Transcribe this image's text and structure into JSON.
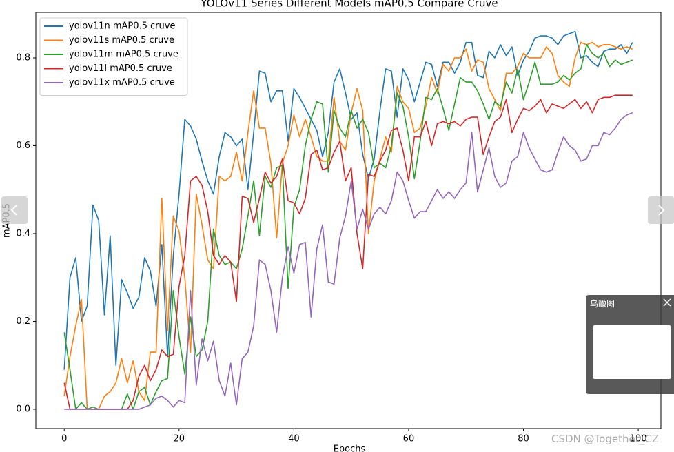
{
  "chart_data": {
    "type": "line",
    "title": "YOLOv11 Series Different Models mAP0.5 Compare Cruve",
    "x_label": "Epochs",
    "y_label": "mAP0.5",
    "x": [
      0,
      1,
      2,
      3,
      4,
      5,
      6,
      7,
      8,
      9,
      10,
      11,
      12,
      13,
      14,
      15,
      16,
      17,
      18,
      19,
      20,
      21,
      22,
      23,
      24,
      25,
      26,
      27,
      28,
      29,
      30,
      31,
      32,
      33,
      34,
      35,
      36,
      37,
      38,
      39,
      40,
      41,
      42,
      43,
      44,
      45,
      46,
      47,
      48,
      49,
      50,
      51,
      52,
      53,
      54,
      55,
      56,
      57,
      58,
      59,
      60,
      61,
      62,
      63,
      64,
      65,
      66,
      67,
      68,
      69,
      70,
      71,
      72,
      73,
      74,
      75,
      76,
      77,
      78,
      79,
      80,
      81,
      82,
      83,
      84,
      85,
      86,
      87,
      88,
      89,
      90,
      91,
      92,
      93,
      94,
      95,
      96,
      97,
      98,
      99
    ],
    "xlim": [
      -4.95,
      103.95
    ],
    "xticks": [
      0,
      20,
      40,
      60,
      80,
      100
    ],
    "ylim": [
      -0.044,
      0.9035
    ],
    "yticks": [
      {
        "value": 0,
        "label": "0.0"
      },
      0.2,
      0.4,
      0.6,
      0.8
    ],
    "legend": "upper left",
    "series": [
      {
        "name": "yolov11n mAP0.5 cruve",
        "color": "#1f77b4",
        "values": [
          0.09,
          0.3,
          0.345,
          0.2,
          0.235,
          0.465,
          0.43,
          0.215,
          0.395,
          0.1,
          0.295,
          0.265,
          0.23,
          0.255,
          0.345,
          0.315,
          0.235,
          0.375,
          0.12,
          0.35,
          0.49,
          0.66,
          0.645,
          0.615,
          0.565,
          0.52,
          0.49,
          0.575,
          0.63,
          0.62,
          0.6,
          0.615,
          0.5,
          0.63,
          0.77,
          0.765,
          0.7,
          0.725,
          0.725,
          0.61,
          0.73,
          0.71,
          0.685,
          0.66,
          0.635,
          0.575,
          0.63,
          0.745,
          0.775,
          0.72,
          0.66,
          0.675,
          0.58,
          0.525,
          0.57,
          0.68,
          0.775,
          0.77,
          0.665,
          0.775,
          0.75,
          0.7,
          0.745,
          0.79,
          0.785,
          0.735,
          0.79,
          0.79,
          0.765,
          0.79,
          0.835,
          0.835,
          0.76,
          0.755,
          0.815,
          0.8,
          0.83,
          0.805,
          0.825,
          0.76,
          0.795,
          0.815,
          0.845,
          0.85,
          0.85,
          0.845,
          0.83,
          0.85,
          0.855,
          0.86,
          0.8,
          0.805,
          0.79,
          0.78,
          0.815,
          0.82,
          0.82,
          0.83,
          0.81,
          0.835
        ]
      },
      {
        "name": "yolov11s mAP0.5 cruve",
        "color": "#ff7f0e",
        "values": [
          0.03,
          0.12,
          0.19,
          0.25,
          0.0,
          0.0,
          0.0,
          0.03,
          0.04,
          0.06,
          0.115,
          0.06,
          0.11,
          0.04,
          0.02,
          0.13,
          0.13,
          0.48,
          0.18,
          0.44,
          0.405,
          0.3,
          0.13,
          0.49,
          0.42,
          0.34,
          0.32,
          0.53,
          0.52,
          0.53,
          0.585,
          0.52,
          0.63,
          0.725,
          0.64,
          0.64,
          0.56,
          0.39,
          0.56,
          0.6,
          0.67,
          0.62,
          0.66,
          0.62,
          0.575,
          0.565,
          0.565,
          0.71,
          0.61,
          0.59,
          0.675,
          0.73,
          0.68,
          0.4,
          0.52,
          0.57,
          0.62,
          0.585,
          0.735,
          0.7,
          0.685,
          0.63,
          0.64,
          0.69,
          0.755,
          0.72,
          0.785,
          0.77,
          0.8,
          0.8,
          0.82,
          0.77,
          0.795,
          0.79,
          0.73,
          0.705,
          0.68,
          0.765,
          0.765,
          0.78,
          0.81,
          0.8,
          0.8,
          0.8,
          0.825,
          0.81,
          0.76,
          0.745,
          0.735,
          0.8,
          0.835,
          0.83,
          0.835,
          0.825,
          0.83,
          0.83,
          0.825,
          0.82,
          0.825,
          0.82
        ]
      },
      {
        "name": "yolov11m mAP0.5 cruve",
        "color": "#2ca02c",
        "values": [
          0.175,
          0.09,
          0.0,
          0.015,
          0.0,
          0.005,
          0.0,
          0.0,
          0.0,
          0.0,
          0.0,
          0.035,
          0.0,
          0.04,
          0.05,
          0.01,
          0.04,
          0.065,
          0.07,
          0.27,
          0.165,
          0.08,
          0.21,
          0.12,
          0.135,
          0.2,
          0.41,
          0.35,
          0.33,
          0.335,
          0.32,
          0.365,
          0.44,
          0.52,
          0.395,
          0.53,
          0.505,
          0.55,
          0.555,
          0.275,
          0.46,
          0.5,
          0.6,
          0.66,
          0.7,
          0.695,
          0.54,
          0.68,
          0.64,
          0.62,
          0.68,
          0.64,
          0.66,
          0.63,
          0.55,
          0.56,
          0.55,
          0.6,
          0.72,
          0.69,
          0.62,
          0.525,
          0.61,
          0.71,
          0.705,
          0.73,
          0.685,
          0.635,
          0.695,
          0.755,
          0.745,
          0.745,
          0.725,
          0.695,
          0.66,
          0.7,
          0.69,
          0.745,
          0.72,
          0.775,
          0.705,
          0.745,
          0.79,
          0.74,
          0.74,
          0.74,
          0.745,
          0.76,
          0.75,
          0.765,
          0.775,
          0.83,
          0.81,
          0.8,
          0.81,
          0.78,
          0.795,
          0.785,
          0.79,
          0.795
        ]
      },
      {
        "name": "yolov11l mAP0.5 cruve",
        "color": "#d62728",
        "values": [
          0.06,
          0.0,
          0.0,
          0.0,
          0.0,
          0.0,
          0.0,
          0.0,
          0.0,
          0.0,
          0.0,
          0.0,
          0.02,
          0.075,
          0.1,
          0.065,
          0.09,
          0.135,
          0.12,
          0.125,
          0.28,
          0.35,
          0.52,
          0.53,
          0.51,
          0.45,
          0.35,
          0.33,
          0.35,
          0.335,
          0.245,
          0.485,
          0.48,
          0.425,
          0.48,
          0.54,
          0.515,
          0.53,
          0.57,
          0.475,
          0.47,
          0.445,
          0.48,
          0.58,
          0.59,
          0.545,
          0.55,
          0.585,
          0.61,
          0.52,
          0.55,
          0.4,
          0.32,
          0.535,
          0.53,
          0.565,
          0.59,
          0.635,
          0.64,
          0.59,
          0.52,
          0.62,
          0.62,
          0.655,
          0.6,
          0.65,
          0.655,
          0.65,
          0.655,
          0.645,
          0.66,
          0.665,
          0.665,
          0.58,
          0.62,
          0.655,
          0.665,
          0.705,
          0.63,
          0.66,
          0.685,
          0.68,
          0.69,
          0.705,
          0.675,
          0.695,
          0.69,
          0.685,
          0.695,
          0.705,
          0.685,
          0.7,
          0.675,
          0.705,
          0.71,
          0.71,
          0.715,
          0.715,
          0.715,
          0.715
        ]
      },
      {
        "name": "yolov11x mAP0.5 cruve",
        "color": "#9467bd",
        "values": [
          0.0,
          0.0,
          0.0,
          0.0,
          0.0,
          0.0,
          0.0,
          0.0,
          0.0,
          0.0,
          0.0,
          0.0,
          0.0,
          0.0,
          0.005,
          0.01,
          0.025,
          0.03,
          0.02,
          0.005,
          0.02,
          0.015,
          0.27,
          0.055,
          0.16,
          0.11,
          0.155,
          0.065,
          0.03,
          0.105,
          0.01,
          0.115,
          0.13,
          0.19,
          0.34,
          0.33,
          0.27,
          0.175,
          0.3,
          0.37,
          0.31,
          0.375,
          0.38,
          0.21,
          0.365,
          0.42,
          0.29,
          0.285,
          0.39,
          0.44,
          0.52,
          0.41,
          0.455,
          0.41,
          0.445,
          0.46,
          0.445,
          0.475,
          0.54,
          0.52,
          0.475,
          0.435,
          0.45,
          0.45,
          0.475,
          0.5,
          0.48,
          0.495,
          0.48,
          0.5,
          0.515,
          0.63,
          0.495,
          0.545,
          0.595,
          0.53,
          0.505,
          0.515,
          0.565,
          0.575,
          0.63,
          0.595,
          0.57,
          0.545,
          0.54,
          0.545,
          0.585,
          0.62,
          0.6,
          0.59,
          0.565,
          0.57,
          0.6,
          0.6,
          0.63,
          0.625,
          0.64,
          0.66,
          0.67,
          0.675
        ]
      }
    ]
  },
  "viewer": {
    "minimap_title": "鸟瞰图",
    "watermark": "CSDN @Together_CZ"
  }
}
